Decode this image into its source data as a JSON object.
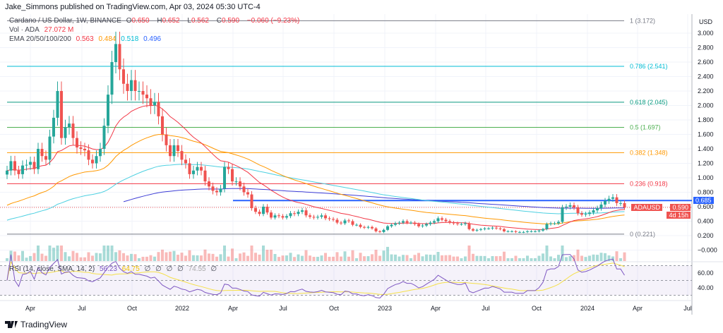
{
  "header": {
    "published": "Jake_Simmons published on TradingView.com, Apr 03, 2024 05:30 UTC-4"
  },
  "legend": {
    "symbol": "Cardano / US Dollar, 1W, BINANCE",
    "o_label": "O",
    "o": "0.650",
    "h_label": "H",
    "h": "0.652",
    "l_label": "L",
    "l": "0.562",
    "c_label": "C",
    "c": "0.590",
    "change": "−0.060 (−9.23%)",
    "vol_label": "Vol · ADA",
    "vol": "27.072 M",
    "ema_label": "EMA 20/50/100/200",
    "ema20": "0.563",
    "ema50": "0.484",
    "ema100": "0.518",
    "ema200": "0.496",
    "rsi_label": "RSI (14, close, SMA, 14, 2)",
    "rsi": "56.23",
    "rsi_sma": "64.75",
    "rsi_na": "∅",
    "rsi_upper": "74.55"
  },
  "price_axis": {
    "unit": "USD",
    "ticks": [
      "3.000",
      "2.800",
      "2.600",
      "2.400",
      "2.200",
      "2.000",
      "1.800",
      "1.600",
      "1.400",
      "1.200",
      "1.000",
      "0.800",
      "0.600",
      "0.400",
      "0.200",
      "−0.000"
    ]
  },
  "tags": {
    "line_price": "0.685",
    "symbol": "ADAUSD",
    "last_price": "0.590",
    "countdown": "4d 15h"
  },
  "rsi_axis": [
    "60.00",
    "40.00"
  ],
  "time_axis": [
    "Apr",
    "Jul",
    "Oct",
    "2022",
    "Apr",
    "Jul",
    "Oct",
    "2023",
    "Apr",
    "Jul",
    "Oct",
    "2024",
    "Apr",
    "Jul"
  ],
  "footer": {
    "brand": "TradingView"
  },
  "colors": {
    "up": "#26a69a",
    "down": "#ef5350",
    "ema20": "#f23645",
    "ema50": "#ff9800",
    "ema100": "#4dd0e1",
    "ema200": "#3f3fd6",
    "rsi": "#7e57c2",
    "rsi_sma": "#f5e04a",
    "hline": "#2962ff"
  },
  "chart_data": {
    "type": "candlestick",
    "interval": "1W",
    "start": "2021-02-15",
    "close": [
      1.1,
      1.23,
      1.1,
      1.05,
      1.17,
      1.18,
      1.22,
      1.12,
      1.4,
      1.3,
      1.25,
      1.57,
      1.83,
      2.2,
      1.55,
      1.7,
      1.75,
      1.55,
      1.42,
      1.4,
      1.38,
      1.25,
      1.2,
      1.3,
      1.4,
      1.72,
      2.15,
      2.6,
      2.85,
      2.5,
      2.3,
      2.2,
      2.35,
      2.2,
      2.2,
      2.15,
      2.1,
      2.0,
      2.05,
      1.85,
      1.6,
      1.45,
      1.3,
      1.45,
      1.37,
      1.25,
      1.2,
      1.05,
      1.1,
      1.15,
      1.1,
      0.95,
      0.88,
      0.82,
      0.8,
      0.85,
      1.15,
      1.12,
      0.95,
      0.95,
      0.88,
      0.8,
      0.77,
      0.58,
      0.53,
      0.5,
      0.6,
      0.52,
      0.45,
      0.48,
      0.47,
      0.45,
      0.47,
      0.51,
      0.5,
      0.53,
      0.55,
      0.48,
      0.46,
      0.45,
      0.46,
      0.48,
      0.44,
      0.43,
      0.42,
      0.38,
      0.37,
      0.41,
      0.4,
      0.35,
      0.35,
      0.32,
      0.31,
      0.32,
      0.3,
      0.26,
      0.25,
      0.28,
      0.33,
      0.35,
      0.37,
      0.38,
      0.4,
      0.38,
      0.38,
      0.36,
      0.33,
      0.34,
      0.36,
      0.38,
      0.4,
      0.44,
      0.42,
      0.4,
      0.38,
      0.37,
      0.36,
      0.36,
      0.37,
      0.29,
      0.27,
      0.28,
      0.29,
      0.3,
      0.3,
      0.31,
      0.3,
      0.29,
      0.26,
      0.26,
      0.26,
      0.25,
      0.25,
      0.25,
      0.26,
      0.26,
      0.26,
      0.27,
      0.29,
      0.36,
      0.37,
      0.37,
      0.39,
      0.59,
      0.6,
      0.62,
      0.59,
      0.51,
      0.49,
      0.5,
      0.52,
      0.55,
      0.58,
      0.63,
      0.68,
      0.71,
      0.73,
      0.65,
      0.65,
      0.59
    ],
    "fib_levels": [
      {
        "level": "1",
        "price": 3.172,
        "label": "1 (3.172)",
        "color": "#787b86"
      },
      {
        "level": "0.786",
        "price": 2.541,
        "label": "0.786 (2.541)",
        "color": "#00bcd4"
      },
      {
        "level": "0.618",
        "price": 2.045,
        "label": "0.618 (2.045)",
        "color": "#089981"
      },
      {
        "level": "0.5",
        "price": 1.697,
        "label": "0.5 (1.697)",
        "color": "#4caf50"
      },
      {
        "level": "0.382",
        "price": 1.348,
        "label": "0.382 (1.348)",
        "color": "#ff9800"
      },
      {
        "level": "0.236",
        "price": 0.918,
        "label": "0.236 (0.918)",
        "color": "#f23645"
      },
      {
        "level": "0",
        "price": 0.221,
        "label": "0 (0.221)",
        "color": "#787b86"
      }
    ],
    "horizontal_line": 0.685,
    "last_price": 0.59,
    "ylim": [
      0,
      3.2
    ],
    "rsi_bands": [
      30,
      70
    ]
  }
}
